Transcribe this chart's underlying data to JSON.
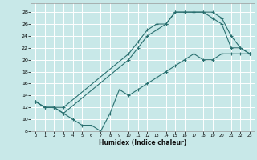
{
  "bg_color": "#c8e8e8",
  "grid_color": "#ffffff",
  "line_color": "#2a7070",
  "xlabel": "Humidex (Indice chaleur)",
  "xlim": [
    -0.5,
    23.5
  ],
  "ylim": [
    8,
    29.5
  ],
  "xticks": [
    0,
    1,
    2,
    3,
    4,
    5,
    6,
    7,
    8,
    9,
    10,
    11,
    12,
    13,
    14,
    15,
    16,
    17,
    18,
    19,
    20,
    21,
    22,
    23
  ],
  "yticks": [
    8,
    10,
    12,
    14,
    16,
    18,
    20,
    22,
    24,
    26,
    28
  ],
  "line1_x": [
    0,
    1,
    2,
    3,
    10,
    11,
    12,
    13,
    14,
    15,
    16,
    17,
    18,
    19,
    20,
    21,
    22,
    23
  ],
  "line1_y": [
    13,
    12,
    12,
    12,
    21,
    23,
    25,
    26,
    26,
    28,
    28,
    28,
    28,
    28,
    27,
    24,
    22,
    21
  ],
  "line2_x": [
    0,
    1,
    2,
    3,
    10,
    11,
    12,
    13,
    14,
    15,
    16,
    17,
    18,
    19,
    20,
    21,
    22,
    23
  ],
  "line2_y": [
    13,
    12,
    12,
    11,
    20,
    22,
    24,
    25,
    26,
    28,
    28,
    28,
    28,
    27,
    26,
    22,
    22,
    21
  ],
  "line3_x": [
    0,
    1,
    2,
    3,
    4,
    5,
    6,
    7,
    8,
    9,
    10,
    11,
    12,
    13,
    14,
    15,
    16,
    17,
    18,
    19,
    20,
    21,
    22,
    23
  ],
  "line3_y": [
    13,
    12,
    12,
    11,
    10,
    9,
    9,
    8,
    11,
    15,
    14,
    15,
    16,
    17,
    18,
    19,
    20,
    21,
    20,
    20,
    21,
    21,
    21,
    21
  ]
}
